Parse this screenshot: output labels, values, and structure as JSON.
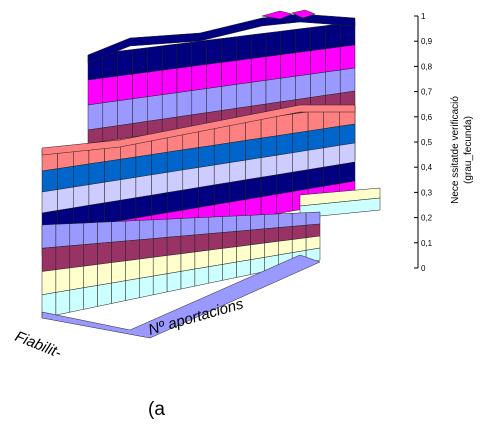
{
  "chart_data": {
    "type": "surface",
    "xlabel": "Fiabilit-",
    "ylabel": "Nº aportacions",
    "zlabel": "Necessitat de verificació (grau_fecunda)",
    "zlabel_lines": [
      "Nece ssitatde verificació",
      "(grau_fecunda)"
    ],
    "zlim": [
      0,
      1
    ],
    "ztick_labels": [
      "0",
      "0,1",
      "0,2",
      "0,3",
      "0,4",
      "0,5",
      "0,6",
      "0,7",
      "0,8",
      "0,9",
      "1"
    ],
    "grid": true,
    "level_band_colors": [
      "#9999ff",
      "#993366",
      "#ffffcc",
      "#ccffff",
      "#660066",
      "#ff8080",
      "#0066cc",
      "#ccccff",
      "#000080",
      "#ff00ff"
    ],
    "surface_heights": [
      [
        0.05,
        0.1,
        0.25,
        0.4,
        0.6,
        0.82,
        0.95,
        1.0
      ],
      [
        0.04,
        0.08,
        0.22,
        0.36,
        0.55,
        0.75,
        0.88,
        0.98
      ],
      [
        0.02,
        0.05,
        0.15,
        0.28,
        0.45,
        0.62,
        0.76,
        0.88
      ],
      [
        0.0,
        0.02,
        0.08,
        0.18,
        0.3,
        0.45,
        0.58,
        0.7
      ]
    ]
  },
  "caption": "(a"
}
